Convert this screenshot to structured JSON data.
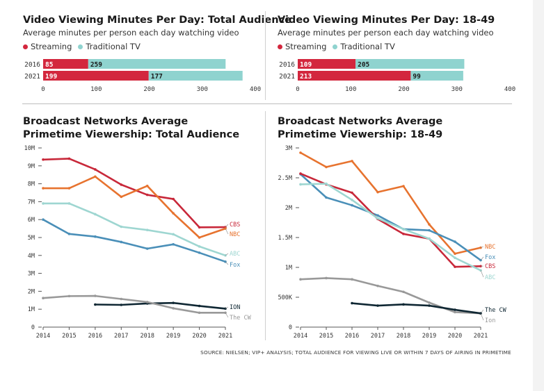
{
  "colors": {
    "streaming": "#d3273e",
    "traditional": "#8fd3cf",
    "CBS": "#c8283a",
    "NBC": "#e7732f",
    "ABC": "#9ed6d1",
    "Fox": "#4a8fb8",
    "ION": "#0f2733",
    "The CW": "#999999"
  },
  "source": "SOURCE: NIELSEN; VIP+ ANALYSIS; TOTAL AUDIENCE FOR VIEWING LIVE OR WITHIN 7 DAYS OF AIRING IN PRIMETIME",
  "chart_data": [
    {
      "type": "bar",
      "stacked": true,
      "orientation": "horizontal",
      "title": "Video Viewing Minutes Per Day: Total Audience",
      "subtitle": "Average minutes per person each day watching video",
      "categories": [
        "2016",
        "2021"
      ],
      "series": [
        {
          "name": "Streaming",
          "values": [
            85,
            199
          ]
        },
        {
          "name": "Traditional TV",
          "values": [
            259,
            177
          ]
        }
      ],
      "xlim": [
        0,
        400
      ],
      "xticks": [
        "0",
        "100",
        "200",
        "300",
        "400"
      ]
    },
    {
      "type": "bar",
      "stacked": true,
      "orientation": "horizontal",
      "title": "Video Viewing Minutes Per Day: 18-49",
      "subtitle": "Average minutes per person each day watching video",
      "categories": [
        "2016",
        "2021"
      ],
      "series": [
        {
          "name": "Streaming",
          "values": [
            109,
            213
          ]
        },
        {
          "name": "Traditional TV",
          "values": [
            205,
            99
          ]
        }
      ],
      "xlim": [
        0,
        400
      ],
      "xticks": [
        "0",
        "100",
        "200",
        "300",
        "400"
      ]
    },
    {
      "type": "line",
      "title": "Broadcast Networks Average Primetime Viewership: Total Audience",
      "x": [
        2014,
        2015,
        2016,
        2017,
        2018,
        2019,
        2020,
        2021
      ],
      "xticks": [
        "2014",
        "2015",
        "2016",
        "2017",
        "2018",
        "2019",
        "2020",
        "2021"
      ],
      "ylim": [
        0,
        10000000
      ],
      "yticks": [
        "0",
        "1M",
        "2M",
        "3M",
        "4M",
        "5M",
        "6M",
        "7M",
        "8M",
        "9M",
        "10M"
      ],
      "series": [
        {
          "name": "CBS",
          "values": [
            9350000,
            9400000,
            8800000,
            7950000,
            7380000,
            7150000,
            5570000,
            5580000
          ]
        },
        {
          "name": "NBC",
          "values": [
            7750000,
            7750000,
            8400000,
            7270000,
            7880000,
            6350000,
            5000000,
            5500000
          ]
        },
        {
          "name": "ABC",
          "values": [
            6900000,
            6900000,
            6300000,
            5600000,
            5420000,
            5180000,
            4500000,
            4000000
          ]
        },
        {
          "name": "Fox",
          "values": [
            6000000,
            5200000,
            5050000,
            4750000,
            4380000,
            4620000,
            4150000,
            3650000
          ]
        },
        {
          "name": "ION",
          "values": [
            null,
            null,
            1260000,
            1240000,
            1320000,
            1350000,
            1180000,
            1030000
          ]
        },
        {
          "name": "The CW",
          "values": [
            1620000,
            1730000,
            1740000,
            1570000,
            1400000,
            1050000,
            800000,
            800000
          ]
        }
      ]
    },
    {
      "type": "line",
      "title": "Broadcast Networks Average Primetime Viewership: 18-49",
      "x": [
        2014,
        2015,
        2016,
        2017,
        2018,
        2019,
        2020,
        2021
      ],
      "xticks": [
        "2014",
        "2015",
        "2016",
        "2017",
        "2018",
        "2019",
        "2020",
        "2021"
      ],
      "ylim": [
        0,
        3000000
      ],
      "yticks": [
        "0",
        "500K",
        "1M",
        "1.5M",
        "2M",
        "2.5M",
        "3M"
      ],
      "series": [
        {
          "name": "NBC",
          "values": [
            2920000,
            2680000,
            2780000,
            2260000,
            2360000,
            1720000,
            1230000,
            1330000
          ]
        },
        {
          "name": "Fox",
          "values": [
            2560000,
            2170000,
            2040000,
            1870000,
            1640000,
            1620000,
            1430000,
            1120000
          ]
        },
        {
          "name": "CBS",
          "values": [
            2570000,
            2390000,
            2250000,
            1810000,
            1560000,
            1480000,
            1010000,
            1020000
          ]
        },
        {
          "name": "ABC",
          "values": [
            2390000,
            2400000,
            2130000,
            1820000,
            1640000,
            1480000,
            1160000,
            950000
          ]
        },
        {
          "name": "The CW",
          "values": [
            800000,
            820000,
            800000,
            690000,
            590000,
            410000,
            250000,
            230000
          ]
        },
        {
          "name": "Ion",
          "values": [
            null,
            null,
            400000,
            360000,
            380000,
            360000,
            290000,
            230000
          ]
        }
      ]
    }
  ]
}
